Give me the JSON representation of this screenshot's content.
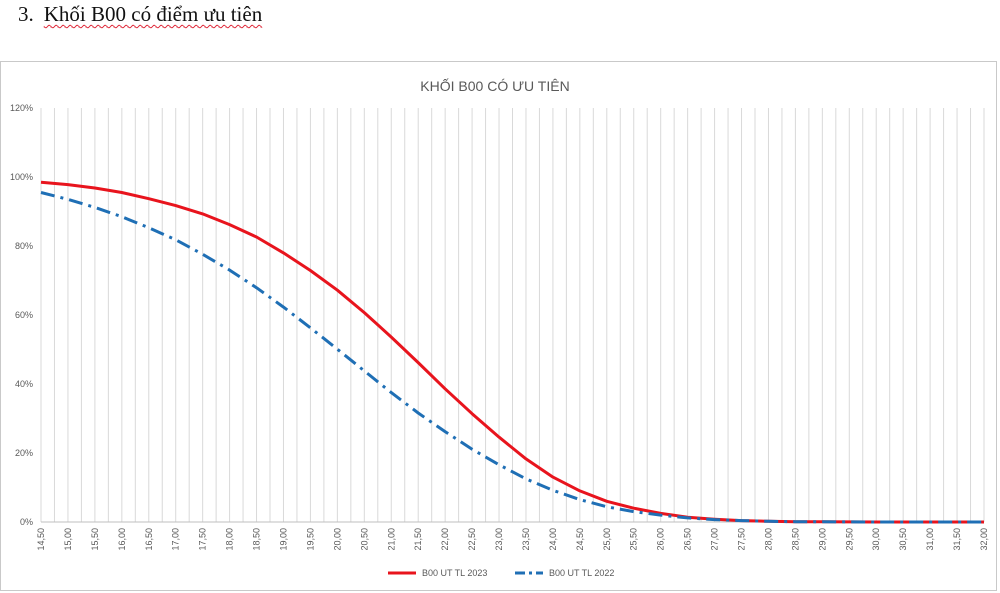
{
  "heading": {
    "number": "3.",
    "text": "Khối B00 có điểm ưu tiên"
  },
  "chart_data": {
    "type": "line",
    "title": "KHỐI B00 CÓ ƯU TIÊN",
    "xlabel": "",
    "ylabel": "",
    "ylim": [
      0,
      1.2
    ],
    "y_ticks": [
      0,
      0.2,
      0.4,
      0.6,
      0.8,
      1.0,
      1.2
    ],
    "y_tick_labels": [
      "0%",
      "20%",
      "40%",
      "60%",
      "80%",
      "100%",
      "120%"
    ],
    "x_ticks": [
      14.5,
      15,
      15.5,
      16,
      16.5,
      17,
      17.5,
      18,
      18.5,
      19,
      19.5,
      20,
      20.5,
      21,
      21.5,
      22,
      22.5,
      23,
      23.5,
      24,
      24.5,
      25,
      25.5,
      26,
      26.5,
      27,
      27.5,
      28,
      28.5,
      29,
      29.5,
      30,
      30.5,
      31,
      31.5,
      32
    ],
    "x_tick_labels": [
      "14,50",
      "15,00",
      "15,50",
      "16,00",
      "16,50",
      "17,00",
      "17,50",
      "18,00",
      "18,50",
      "19,00",
      "19,50",
      "20,00",
      "20,50",
      "21,00",
      "21,50",
      "22,00",
      "22,50",
      "23,00",
      "23,50",
      "24,00",
      "24,50",
      "25,00",
      "25,50",
      "26,00",
      "26,50",
      "27,00",
      "27,50",
      "28,00",
      "28,50",
      "29,00",
      "29,50",
      "30,00",
      "30,50",
      "31,00",
      "31,50",
      "32,00"
    ],
    "x_step": 0.25,
    "grid": "vertical",
    "legend_position": "bottom",
    "series": [
      {
        "name": "B00 UT TL 2023",
        "color": "#e8141d",
        "style": "solid",
        "x": [
          14.5,
          15,
          15.5,
          16,
          16.5,
          17,
          17.5,
          18,
          18.5,
          19,
          19.5,
          20,
          20.5,
          21,
          21.5,
          22,
          22.5,
          23,
          23.5,
          24,
          24.5,
          25,
          25.5,
          26,
          26.5,
          27,
          27.5,
          28,
          28.5,
          29,
          29.5,
          30,
          30.5,
          31,
          31.5,
          32
        ],
        "values": [
          0.985,
          0.978,
          0.968,
          0.955,
          0.937,
          0.917,
          0.893,
          0.862,
          0.826,
          0.78,
          0.729,
          0.672,
          0.607,
          0.536,
          0.462,
          0.386,
          0.314,
          0.246,
          0.183,
          0.13,
          0.09,
          0.06,
          0.04,
          0.025,
          0.014,
          0.008,
          0.004,
          0.002,
          0.001,
          0.0005,
          0.0002,
          0.0001,
          0,
          0,
          0,
          0
        ]
      },
      {
        "name": "B00 UT TL 2022",
        "color": "#1f6fb5",
        "style": "dash-dot",
        "x": [
          14.5,
          15,
          15.5,
          16,
          16.5,
          17,
          17.5,
          18,
          18.5,
          19,
          19.5,
          20,
          20.5,
          21,
          21.5,
          22,
          22.5,
          23,
          23.5,
          24,
          24.5,
          25,
          25.5,
          26,
          26.5,
          27,
          27.5,
          28,
          28.5,
          29,
          29.5,
          30,
          30.5,
          31,
          31.5,
          32
        ],
        "values": [
          0.955,
          0.935,
          0.912,
          0.885,
          0.853,
          0.818,
          0.776,
          0.73,
          0.679,
          0.623,
          0.563,
          0.501,
          0.438,
          0.375,
          0.316,
          0.262,
          0.211,
          0.166,
          0.125,
          0.092,
          0.065,
          0.044,
          0.03,
          0.02,
          0.012,
          0.007,
          0.004,
          0.002,
          0.001,
          0.0005,
          0.0002,
          0.0001,
          0,
          0,
          0,
          0
        ]
      }
    ]
  }
}
